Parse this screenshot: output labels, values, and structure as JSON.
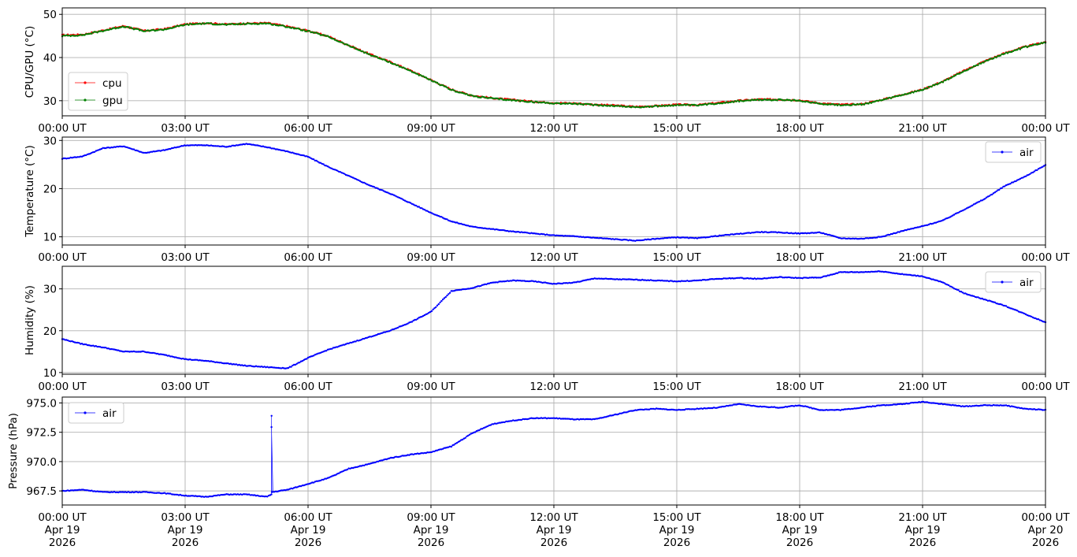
{
  "chart_data": [
    {
      "type": "line",
      "ylabel": "CPU/GPU (°C)",
      "ylim": [
        26.5,
        51.5
      ],
      "yticks": [
        30,
        40,
        50
      ],
      "ytick_labels": [
        "30",
        "40",
        "50"
      ],
      "xlim": [
        "2026-04-19 00:00",
        "2026-04-20 00:00"
      ],
      "xtick_labels": [
        "00:00 UT",
        "03:00 UT",
        "06:00 UT",
        "09:00 UT",
        "12:00 UT",
        "15:00 UT",
        "18:00 UT",
        "21:00 UT",
        "00:00 UT"
      ],
      "grid": true,
      "legend": "center-left",
      "series": [
        {
          "name": "cpu",
          "color": "#ff0000",
          "x_hours": [
            0,
            0.5,
            1,
            1.5,
            2,
            2.5,
            3,
            3.5,
            4,
            4.5,
            5,
            5.5,
            6,
            6.5,
            7,
            7.5,
            8,
            8.5,
            9,
            9.5,
            10,
            10.5,
            11,
            11.5,
            12,
            12.5,
            13,
            13.5,
            14,
            14.5,
            15,
            15.5,
            16,
            16.5,
            17,
            17.5,
            18,
            18.5,
            19,
            19.5,
            20,
            20.5,
            21,
            21.5,
            22,
            22.5,
            23,
            23.5,
            24
          ],
          "values": [
            45.2,
            45.3,
            46.3,
            47.3,
            46.2,
            46.6,
            47.7,
            48.0,
            47.7,
            47.9,
            48.0,
            47.2,
            46.2,
            44.9,
            42.8,
            40.8,
            39.0,
            37.0,
            34.8,
            32.6,
            31.2,
            30.6,
            30.2,
            29.8,
            29.5,
            29.4,
            29.1,
            28.9,
            28.6,
            28.8,
            29.1,
            29.0,
            29.5,
            30.0,
            30.3,
            30.3,
            30.1,
            29.4,
            29.1,
            29.2,
            30.2,
            31.4,
            32.6,
            34.5,
            36.9,
            39.1,
            41.0,
            42.5,
            43.6
          ]
        },
        {
          "name": "gpu",
          "color": "#008000",
          "x_hours": [
            0,
            0.5,
            1,
            1.5,
            2,
            2.5,
            3,
            3.5,
            4,
            4.5,
            5,
            5.5,
            6,
            6.5,
            7,
            7.5,
            8,
            8.5,
            9,
            9.5,
            10,
            10.5,
            11,
            11.5,
            12,
            12.5,
            13,
            13.5,
            14,
            14.5,
            15,
            15.5,
            16,
            16.5,
            17,
            17.5,
            18,
            18.5,
            19,
            19.5,
            20,
            20.5,
            21,
            21.5,
            22,
            22.5,
            23,
            23.5,
            24
          ],
          "values": [
            45.0,
            45.2,
            46.2,
            47.2,
            46.1,
            46.5,
            47.6,
            47.9,
            47.6,
            47.8,
            47.9,
            47.1,
            46.1,
            44.8,
            42.7,
            40.7,
            38.9,
            36.9,
            34.7,
            32.5,
            31.1,
            30.5,
            30.1,
            29.7,
            29.4,
            29.3,
            29.0,
            28.8,
            28.5,
            28.7,
            29.0,
            28.9,
            29.4,
            29.9,
            30.2,
            30.2,
            30.0,
            29.3,
            29.0,
            29.1,
            30.1,
            31.3,
            32.5,
            34.4,
            36.8,
            39.0,
            40.9,
            42.4,
            43.5
          ]
        }
      ]
    },
    {
      "type": "line",
      "ylabel": "Temperature (°C)",
      "ylim": [
        8.3,
        30.7
      ],
      "yticks": [
        10,
        20,
        30
      ],
      "ytick_labels": [
        "10",
        "20",
        "30"
      ],
      "xlim": [
        "2026-04-19 00:00",
        "2026-04-20 00:00"
      ],
      "xtick_labels": [
        "00:00 UT",
        "03:00 UT",
        "06:00 UT",
        "09:00 UT",
        "12:00 UT",
        "15:00 UT",
        "18:00 UT",
        "21:00 UT",
        "00:00 UT"
      ],
      "grid": true,
      "legend": "top-right",
      "series": [
        {
          "name": "air",
          "color": "#0000ff",
          "x_hours": [
            0,
            0.5,
            1,
            1.5,
            2,
            2.5,
            3,
            3.5,
            4,
            4.5,
            5,
            5.5,
            6,
            6.5,
            7,
            7.5,
            8,
            8.5,
            9,
            9.5,
            10,
            10.5,
            11,
            11.5,
            12,
            12.5,
            13,
            13.5,
            14,
            14.5,
            15,
            15.5,
            16,
            16.5,
            17,
            17.5,
            18,
            18.5,
            19,
            19.5,
            20,
            20.5,
            21,
            21.5,
            22,
            22.5,
            23,
            23.5,
            24
          ],
          "values": [
            26.2,
            26.7,
            28.4,
            28.8,
            27.4,
            28.0,
            29.0,
            29.0,
            28.7,
            29.3,
            28.6,
            27.7,
            26.6,
            24.5,
            22.6,
            20.7,
            19.0,
            17.0,
            15.0,
            13.2,
            12.1,
            11.6,
            11.1,
            10.7,
            10.3,
            10.1,
            9.8,
            9.5,
            9.2,
            9.6,
            9.9,
            9.7,
            10.2,
            10.6,
            11.0,
            10.9,
            10.7,
            10.9,
            9.7,
            9.6,
            10.0,
            11.2,
            12.2,
            13.4,
            15.6,
            17.8,
            20.5,
            22.5,
            24.9
          ]
        }
      ]
    },
    {
      "type": "line",
      "ylabel": "Humidity (%)",
      "ylim": [
        9.6,
        35.4
      ],
      "yticks": [
        10,
        20,
        30
      ],
      "ytick_labels": [
        "10",
        "20",
        "30"
      ],
      "xlim": [
        "2026-04-19 00:00",
        "2026-04-20 00:00"
      ],
      "xtick_labels": [
        "00:00 UT",
        "03:00 UT",
        "06:00 UT",
        "09:00 UT",
        "12:00 UT",
        "15:00 UT",
        "18:00 UT",
        "21:00 UT",
        "00:00 UT"
      ],
      "grid": true,
      "legend": "top-right",
      "series": [
        {
          "name": "air",
          "color": "#0000ff",
          "x_hours": [
            0,
            0.5,
            1,
            1.5,
            2,
            2.5,
            3,
            3.5,
            4,
            4.5,
            5,
            5.5,
            6,
            6.5,
            7,
            7.5,
            8,
            8.5,
            9,
            9.5,
            10,
            10.5,
            11,
            11.5,
            12,
            12.5,
            13,
            13.5,
            14,
            14.5,
            15,
            15.5,
            16,
            16.5,
            17,
            17.5,
            18,
            18.5,
            19,
            19.5,
            20,
            20.5,
            21,
            21.5,
            22,
            22.5,
            23,
            23.5,
            24
          ],
          "values": [
            18.0,
            16.8,
            16.0,
            15.0,
            15.0,
            14.2,
            13.2,
            12.8,
            12.2,
            11.6,
            11.3,
            11.0,
            13.5,
            15.5,
            17.0,
            18.5,
            20.0,
            22.0,
            24.5,
            29.5,
            30.2,
            31.5,
            32.0,
            31.8,
            31.2,
            31.5,
            32.5,
            32.3,
            32.2,
            32.0,
            31.8,
            32.0,
            32.4,
            32.6,
            32.4,
            32.8,
            32.6,
            32.7,
            34.0,
            34.0,
            34.2,
            33.5,
            33.0,
            31.5,
            29.0,
            27.5,
            26.0,
            24.0,
            22.0
          ]
        }
      ]
    },
    {
      "type": "line",
      "ylabel": "Pressure (hPa)",
      "ylim": [
        966.3,
        975.5
      ],
      "yticks": [
        967.5,
        970.0,
        972.5,
        975.0
      ],
      "ytick_labels": [
        "967.5",
        "970.0",
        "972.5",
        "975.0"
      ],
      "xlim": [
        "2026-04-19 00:00",
        "2026-04-20 00:00"
      ],
      "xtick_labels": [
        "00:00 UT\nApr 19\n2026",
        "03:00 UT\nApr 19\n2026",
        "06:00 UT\nApr 19\n2026",
        "09:00 UT\nApr 19\n2026",
        "12:00 UT\nApr 19\n2026",
        "15:00 UT\nApr 19\n2026",
        "18:00 UT\nApr 19\n2026",
        "21:00 UT\nApr 19\n2026",
        "00:00 UT\nApr 20\n2026"
      ],
      "grid": true,
      "legend": "top-left",
      "series": [
        {
          "name": "air",
          "color": "#0000ff",
          "x_hours": [
            0,
            0.5,
            1,
            1.5,
            2,
            2.5,
            3,
            3.5,
            4,
            4.5,
            5.0,
            5.1,
            5.11,
            5.12,
            5.5,
            6,
            6.5,
            7,
            7.5,
            8,
            8.5,
            9,
            9.5,
            10,
            10.5,
            11,
            11.5,
            12,
            12.5,
            13,
            13.5,
            14,
            14.5,
            15,
            15.5,
            16,
            16.5,
            17,
            17.5,
            18,
            18.5,
            19,
            19.5,
            20,
            20.5,
            21,
            21.5,
            22,
            22.5,
            23,
            23.5,
            24
          ],
          "values": [
            967.5,
            967.6,
            967.4,
            967.4,
            967.4,
            967.3,
            967.1,
            967.0,
            967.2,
            967.2,
            967.0,
            967.2,
            973.9,
            967.4,
            967.6,
            968.1,
            968.6,
            969.4,
            969.8,
            970.3,
            970.6,
            970.8,
            971.3,
            972.4,
            973.2,
            973.5,
            973.7,
            973.7,
            973.6,
            973.6,
            974.0,
            974.4,
            974.5,
            974.4,
            974.5,
            974.6,
            974.9,
            974.7,
            974.6,
            974.8,
            974.4,
            974.4,
            974.6,
            974.8,
            974.9,
            975.1,
            974.9,
            974.7,
            974.8,
            974.8,
            974.5,
            974.4
          ]
        }
      ]
    }
  ]
}
